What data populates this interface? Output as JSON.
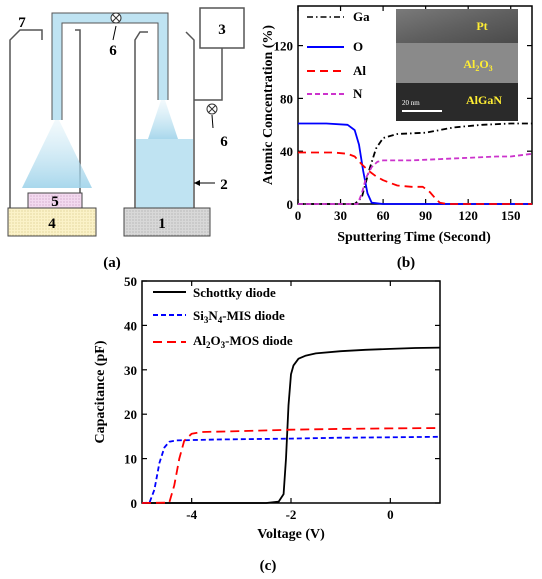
{
  "panel_a": {
    "caption": "(a)",
    "labels": {
      "n1": "1",
      "n2": "2",
      "n3": "3",
      "n4": "4",
      "n5": "5",
      "n6a": "6",
      "n6b": "6",
      "n7": "7"
    }
  },
  "panel_b": {
    "caption": "(b)",
    "inset": {
      "pt": "Pt",
      "al2o3": "Al2O3",
      "algan": "AlGaN",
      "scale": "20 nm"
    }
  },
  "panel_c": {
    "caption": "(c)"
  },
  "colors": {
    "ga": "#000000",
    "o": "#0000ff",
    "al": "#ff0000",
    "n": "#cc33cc",
    "schottky": "#000000",
    "mis": "#0000ff",
    "mos": "#ff0000",
    "spray": "#bfe3f2",
    "liquid": "#bfe3f2",
    "tube": "#bfe3f2"
  },
  "chart_data": [
    {
      "type": "line",
      "panel": "b",
      "xlabel": "Sputtering Time (Second)",
      "ylabel": "Atomic Concentration (%)",
      "xlim": [
        0,
        165
      ],
      "ylim": [
        0,
        150
      ],
      "xticks": [
        0,
        30,
        60,
        90,
        120,
        150
      ],
      "yticks": [
        0,
        40,
        80,
        120
      ],
      "legend_position": "top-left",
      "series": [
        {
          "name": "Ga",
          "style": "dash-dot",
          "points": [
            [
              0,
              0
            ],
            [
              40,
              0
            ],
            [
              45,
              5
            ],
            [
              50,
              25
            ],
            [
              55,
              42
            ],
            [
              60,
              50
            ],
            [
              70,
              53
            ],
            [
              90,
              54
            ],
            [
              110,
              58
            ],
            [
              130,
              60
            ],
            [
              150,
              61
            ],
            [
              165,
              61
            ]
          ]
        },
        {
          "name": "O",
          "style": "solid",
          "points": [
            [
              0,
              61
            ],
            [
              20,
              61
            ],
            [
              35,
              60
            ],
            [
              40,
              56
            ],
            [
              43,
              45
            ],
            [
              46,
              25
            ],
            [
              49,
              8
            ],
            [
              52,
              1
            ],
            [
              60,
              0
            ],
            [
              165,
              0
            ]
          ]
        },
        {
          "name": "Al",
          "style": "dash",
          "points": [
            [
              0,
              39
            ],
            [
              25,
              39
            ],
            [
              35,
              38
            ],
            [
              40,
              36
            ],
            [
              45,
              30
            ],
            [
              50,
              25
            ],
            [
              55,
              21
            ],
            [
              60,
              18
            ],
            [
              65,
              16
            ],
            [
              70,
              14
            ],
            [
              80,
              13
            ],
            [
              88,
              13
            ],
            [
              93,
              9
            ],
            [
              97,
              4
            ],
            [
              100,
              1
            ],
            [
              105,
              0
            ],
            [
              165,
              0
            ]
          ]
        },
        {
          "name": "N",
          "style": "dash",
          "points": [
            [
              0,
              0
            ],
            [
              42,
              0
            ],
            [
              45,
              8
            ],
            [
              48,
              20
            ],
            [
              52,
              28
            ],
            [
              56,
              32
            ],
            [
              60,
              33
            ],
            [
              80,
              33
            ],
            [
              100,
              34
            ],
            [
              120,
              35
            ],
            [
              140,
              36
            ],
            [
              150,
              36
            ],
            [
              165,
              38
            ]
          ]
        }
      ]
    },
    {
      "type": "line",
      "panel": "c",
      "xlabel": "Voltage (V)",
      "ylabel": "Capacitance (pF)",
      "xlim": [
        -5,
        1
      ],
      "ylim": [
        0,
        50
      ],
      "xticks": [
        -4,
        -2,
        0
      ],
      "yticks": [
        0,
        10,
        20,
        30,
        40,
        50
      ],
      "legend_position": "top-left",
      "series": [
        {
          "name": "Schottky diode",
          "style": "solid",
          "points": [
            [
              -5,
              0
            ],
            [
              -2.5,
              0
            ],
            [
              -2.25,
              0.3
            ],
            [
              -2.15,
              2
            ],
            [
              -2.1,
              10
            ],
            [
              -2.05,
              22
            ],
            [
              -2.0,
              29
            ],
            [
              -1.95,
              31
            ],
            [
              -1.85,
              32.5
            ],
            [
              -1.7,
              33.2
            ],
            [
              -1.5,
              33.7
            ],
            [
              -1.0,
              34.2
            ],
            [
              -0.5,
              34.5
            ],
            [
              0,
              34.7
            ],
            [
              0.5,
              34.9
            ],
            [
              1,
              35
            ]
          ]
        },
        {
          "name": "Si3N4-MIS diode",
          "style": "dash",
          "points": [
            [
              -5,
              0
            ],
            [
              -4.85,
              0.1
            ],
            [
              -4.75,
              3
            ],
            [
              -4.65,
              9
            ],
            [
              -4.55,
              12.5
            ],
            [
              -4.45,
              13.8
            ],
            [
              -4.3,
              14.1
            ],
            [
              -3.5,
              14.3
            ],
            [
              -2,
              14.5
            ],
            [
              -1,
              14.7
            ],
            [
              0,
              14.8
            ],
            [
              1,
              14.9
            ]
          ]
        },
        {
          "name": "Al2O3-MOS diode",
          "style": "dash",
          "points": [
            [
              -5,
              0
            ],
            [
              -4.45,
              0.1
            ],
            [
              -4.35,
              4
            ],
            [
              -4.25,
              10
            ],
            [
              -4.15,
              14
            ],
            [
              -4.0,
              15.6
            ],
            [
              -3.8,
              16.0
            ],
            [
              -3,
              16.2
            ],
            [
              -2,
              16.5
            ],
            [
              -1,
              16.7
            ],
            [
              0,
              16.8
            ],
            [
              1,
              16.9
            ]
          ]
        }
      ]
    }
  ]
}
